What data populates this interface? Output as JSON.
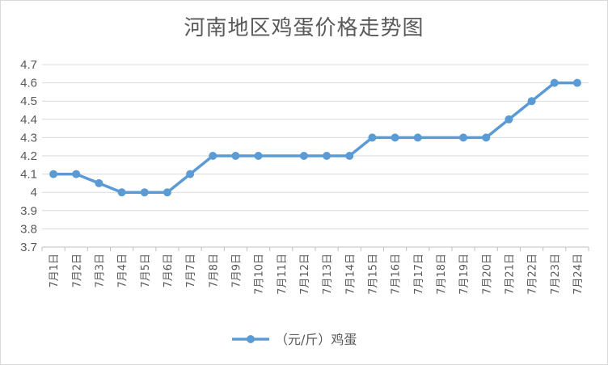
{
  "chart_data": {
    "type": "line",
    "title": "河南地区鸡蛋价格走势图",
    "xlabel": "",
    "ylabel": "",
    "categories": [
      "7月1日",
      "7月2日",
      "7月3日",
      "7月4日",
      "7月5日",
      "7月6日",
      "7月7日",
      "7月8日",
      "7月9日",
      "7月10日",
      "7月11日",
      "7月12日",
      "7月13日",
      "7月14日",
      "7月15日",
      "7月16日",
      "7月17日",
      "7月18日",
      "7月19日",
      "7月20日",
      "7月21日",
      "7月22日",
      "7月23日",
      "7月24日"
    ],
    "series": [
      {
        "name": "（元/斤）鸡蛋",
        "values": [
          4.1,
          4.1,
          4.05,
          4.0,
          4.0,
          4.0,
          4.1,
          4.2,
          4.2,
          4.2,
          null,
          4.2,
          4.2,
          4.2,
          4.3,
          4.3,
          4.3,
          null,
          4.3,
          4.3,
          4.4,
          4.5,
          4.6,
          4.6
        ]
      }
    ],
    "yticks": [
      "3.7",
      "3.8",
      "3.9",
      "4",
      "4.1",
      "4.2",
      "4.3",
      "4.4",
      "4.5",
      "4.6",
      "4.7"
    ],
    "ylim": [
      3.7,
      4.7
    ],
    "grid": true,
    "legend_position": "bottom",
    "colors": {
      "line": "#5b9bd5",
      "grid": "#d9d9d9",
      "axis": "#bfbfbf",
      "text": "#595959"
    }
  }
}
